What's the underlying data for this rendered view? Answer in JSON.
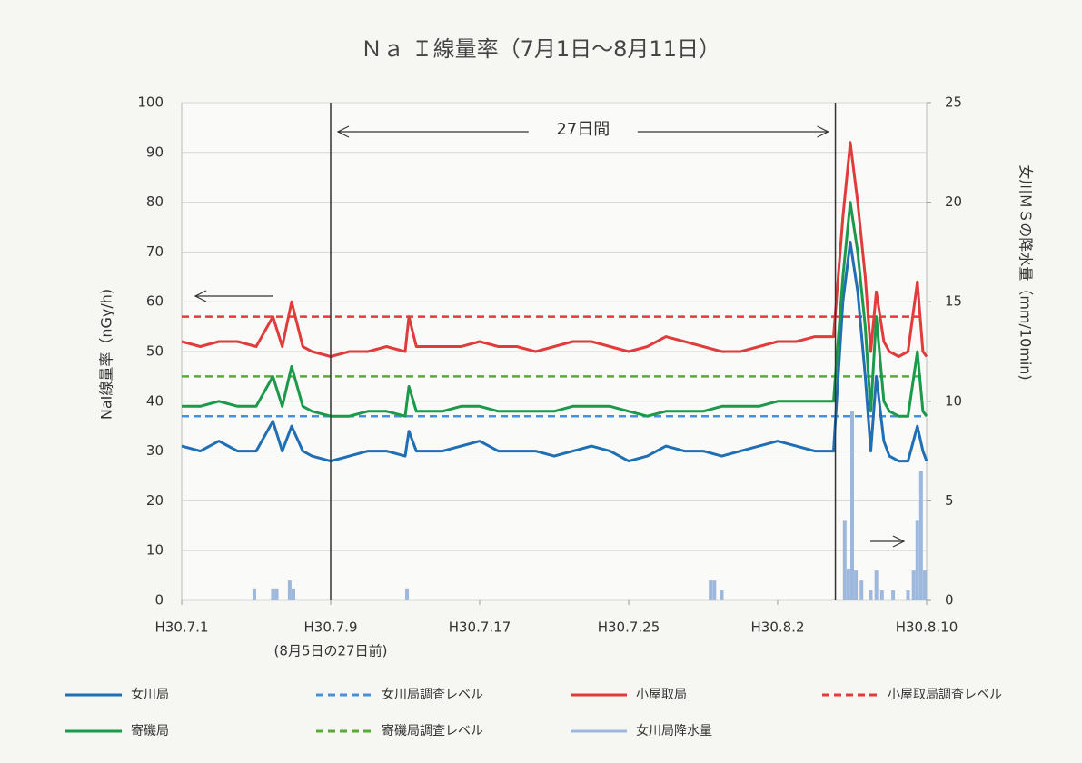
{
  "chart_data": {
    "type": "line",
    "title": "Ｎａ Ｉ線量率（7月1日～8月11日）",
    "y_label": "NaI線量率（nGy/h)",
    "y2_label": "女川ＭＳの降水量（mm/10min)",
    "xlim": [
      0,
      40
    ],
    "xticks": [
      {
        "value": 0,
        "label": "H30.7.1"
      },
      {
        "value": 8,
        "label": "H30.7.9"
      },
      {
        "value": 16,
        "label": "H30.7.17"
      },
      {
        "value": 24,
        "label": "H30.7.25"
      },
      {
        "value": 32,
        "label": "H30.8.2"
      },
      {
        "value": 40,
        "label": "H30.8.10"
      }
    ],
    "ylim": [
      0,
      100
    ],
    "yticks": [
      0,
      10,
      20,
      30,
      40,
      50,
      60,
      70,
      80,
      90,
      100
    ],
    "y2lim": [
      0,
      25
    ],
    "y2ticks": [
      0,
      5,
      10,
      15,
      20,
      25
    ],
    "grid": true,
    "annotations": [
      "27日間",
      "(8月5日の27日前)"
    ],
    "vlines": [
      8,
      35.1
    ],
    "x": [
      0,
      1,
      2,
      3,
      4,
      4.9,
      5.4,
      5.9,
      6.5,
      7,
      8,
      9,
      10,
      11,
      12,
      12.2,
      12.6,
      13,
      14,
      15,
      16,
      17,
      18,
      19,
      20,
      21,
      22,
      23,
      24,
      25,
      26,
      27,
      28,
      29,
      30,
      31,
      32,
      33,
      34,
      35,
      35.5,
      35.9,
      36.3,
      36.7,
      37,
      37.3,
      37.7,
      38,
      38.5,
      39,
      39.5,
      39.8,
      40
    ],
    "series": [
      {
        "name": "女川局",
        "color": "#1f6fb5",
        "values": [
          31,
          30,
          32,
          30,
          30,
          36,
          30,
          35,
          30,
          29,
          28,
          29,
          30,
          30,
          29,
          34,
          30,
          30,
          30,
          31,
          32,
          30,
          30,
          30,
          29,
          30,
          31,
          30,
          28,
          29,
          31,
          30,
          30,
          29,
          30,
          31,
          32,
          31,
          30,
          30,
          60,
          72,
          62,
          45,
          30,
          45,
          32,
          29,
          28,
          28,
          35,
          30,
          28
        ]
      },
      {
        "name": "小屋取局",
        "color": "#e03c3c",
        "values": [
          52,
          51,
          52,
          52,
          51,
          57,
          51,
          60,
          51,
          50,
          49,
          50,
          50,
          51,
          50,
          57,
          51,
          51,
          51,
          51,
          52,
          51,
          51,
          50,
          51,
          52,
          52,
          51,
          50,
          51,
          53,
          52,
          51,
          50,
          50,
          51,
          52,
          52,
          53,
          53,
          77,
          92,
          80,
          65,
          50,
          62,
          52,
          50,
          49,
          50,
          64,
          50,
          49
        ]
      },
      {
        "name": "寄磯局",
        "color": "#1a9a4a",
        "values": [
          39,
          39,
          40,
          39,
          39,
          45,
          39,
          47,
          39,
          38,
          37,
          37,
          38,
          38,
          37,
          43,
          38,
          38,
          38,
          39,
          39,
          38,
          38,
          38,
          38,
          39,
          39,
          39,
          38,
          37,
          38,
          38,
          38,
          39,
          39,
          39,
          40,
          40,
          40,
          40,
          65,
          80,
          70,
          55,
          38,
          57,
          40,
          38,
          37,
          37,
          50,
          38,
          37
        ]
      }
    ],
    "reference_lines": [
      {
        "name": "女川局調査レベル",
        "color": "#4a90d9",
        "value": 37
      },
      {
        "name": "小屋取局調査レベル",
        "color": "#e03c3c",
        "value": 57
      },
      {
        "name": "寄磯局調査レベル",
        "color": "#5aaa3a",
        "value": 45
      }
    ],
    "precipitation": {
      "name": "女川局降水量",
      "color": "#9db8dc",
      "axis": "y2",
      "x": [
        3.9,
        4.9,
        5.1,
        5.8,
        6.0,
        12.1,
        28.4,
        28.6,
        29.0,
        35.6,
        35.8,
        36.0,
        36.2,
        36.5,
        37.0,
        37.3,
        37.6,
        38.2,
        39.0,
        39.3,
        39.5,
        39.7,
        39.9
      ],
      "values": [
        0.6,
        0.6,
        0.6,
        1.0,
        0.6,
        0.6,
        1.0,
        1.0,
        0.5,
        4.0,
        1.6,
        9.5,
        1.5,
        1.0,
        0.5,
        1.5,
        0.5,
        0.5,
        0.5,
        1.5,
        4.0,
        6.5,
        1.5
      ]
    }
  }
}
